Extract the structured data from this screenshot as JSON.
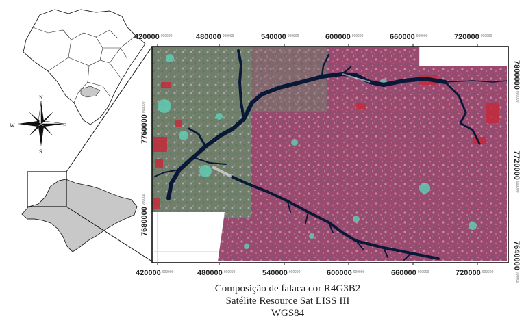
{
  "frame": {
    "top_ticks": [
      {
        "major": "420000",
        "minor": "000000"
      },
      {
        "major": "480000",
        "minor": "000000"
      },
      {
        "major": "540000",
        "minor": "000000"
      },
      {
        "major": "600000",
        "minor": "000000"
      },
      {
        "major": "660000",
        "minor": "000000"
      },
      {
        "major": "720000",
        "minor": "000000"
      }
    ],
    "bottom_ticks": [
      {
        "major": "420000",
        "minor": "000000"
      },
      {
        "major": "480000",
        "minor": "000000"
      },
      {
        "major": "540000",
        "minor": "000000"
      },
      {
        "major": "600000",
        "minor": "000000"
      },
      {
        "major": "660000",
        "minor": "000000"
      },
      {
        "major": "720000",
        "minor": "000000"
      }
    ],
    "left_ticks": [
      {
        "major": "7760000",
        "minor": "000000"
      },
      {
        "major": "7680000",
        "minor": "000000"
      }
    ],
    "right_ticks": [
      {
        "major": "7800000",
        "minor": "000000"
      },
      {
        "major": "7720000",
        "minor": "000000"
      },
      {
        "major": "7640000",
        "minor": "000000"
      }
    ]
  },
  "compass": {
    "north": "N",
    "south": "S",
    "east": "E",
    "west": "W"
  },
  "caption": {
    "line1": "Composição de falaca cor R4G3B2",
    "line2": "Satélite Resource Sat LISS III",
    "line3": "WGS84"
  },
  "colors": {
    "imagery_base": "#9a4a6e",
    "imagery_west": "#6f7f6a",
    "vegetation_red": "#c42a3c",
    "water": "#0a1838",
    "cyan_patches": "#5fd0b8",
    "state_fill": "#c8c8c8"
  }
}
